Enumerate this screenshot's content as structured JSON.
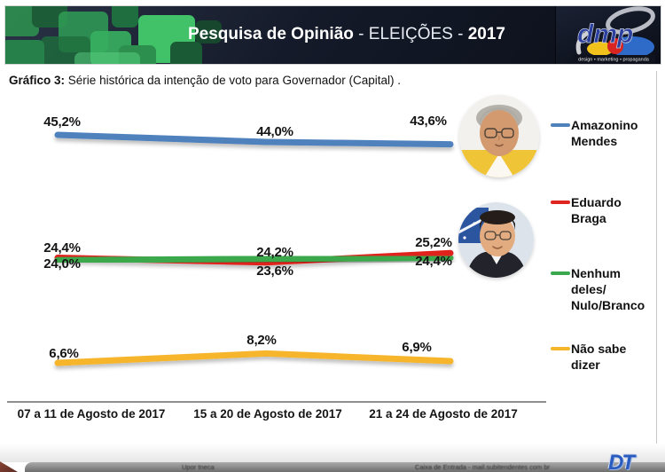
{
  "header": {
    "title_main": "Pesquisa de Opinião",
    "title_mid": "- ELEIÇÕES -",
    "title_year": "2017",
    "logo_text": "dmp",
    "logo_tagline": "design • marketing • propaganda"
  },
  "subtitle": {
    "prefix": "Gráfico 3:",
    "text": "Série histórica da intenção de voto para Governador (Capital) ."
  },
  "chart_data": {
    "type": "line",
    "title": "Série histórica da intenção de voto para Governador (Capital)",
    "categories": [
      "07 a 11 de Agosto de 2017",
      "15 a 20 de Agosto de 2017",
      "21 a 24 de Agosto de 2017"
    ],
    "series": [
      {
        "name": "Amazonino Mendes",
        "color": "#4f81bd",
        "values": [
          45.2,
          44.0,
          43.6
        ],
        "labels": [
          "45,2%",
          "44,0%",
          "43,6%"
        ]
      },
      {
        "name": "Eduardo Braga",
        "color": "#e0241f",
        "values": [
          24.4,
          23.6,
          25.2
        ],
        "labels": [
          "24,4%",
          "23,6%",
          "25,2%"
        ]
      },
      {
        "name": "Nenhum deles/Nulo/Branco",
        "color": "#3aa84c",
        "values": [
          24.0,
          24.2,
          24.4
        ],
        "labels": [
          "24,0%",
          "24,2%",
          "24,4%"
        ]
      },
      {
        "name": "Não sabe dizer",
        "color": "#f6b52a",
        "values": [
          6.6,
          8.2,
          6.9
        ],
        "labels": [
          "6,6%",
          "8,2%",
          "6,9%"
        ]
      }
    ],
    "ylim": [
      0,
      50
    ],
    "xlabel": "",
    "ylabel": "",
    "grid": false,
    "legend_position": "right"
  },
  "legend": {
    "items": [
      {
        "label": "Amazonino\nMendes",
        "color": "#4f81bd"
      },
      {
        "label": "Eduardo\nBraga",
        "color": "#e0241f"
      },
      {
        "label": "Nenhum\ndeles/\nNulo/Branco",
        "color": "#3aa84c"
      },
      {
        "label": "Não sabe\ndizer",
        "color": "#f6b52a"
      }
    ]
  },
  "bottom_bar": {
    "text_left": "Upor tneca",
    "text_right": "Caixa de Entrada  -  mail.subitendentes com br",
    "logo": "DT"
  }
}
